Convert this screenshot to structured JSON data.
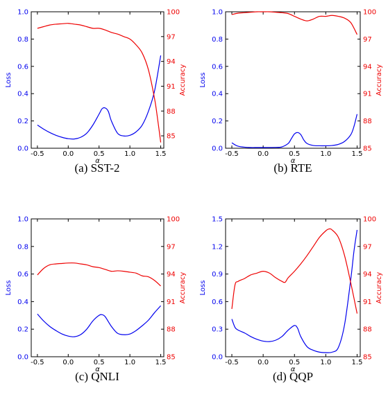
{
  "colors": {
    "loss": "#0000ee",
    "accuracy": "#ee0000",
    "axis": "#000000"
  },
  "chart_data": [
    {
      "type": "line",
      "caption": "(a)  SST-2",
      "xlabel": "α",
      "ylabel_left": "Loss",
      "ylabel_right": "Accuracy",
      "xlim": [
        -0.6,
        1.55
      ],
      "xticks": [
        "-0.5",
        "0.0",
        "0.5",
        "1.0",
        "1.5"
      ],
      "ylim_left": [
        0,
        1.0
      ],
      "yticks_left": [
        "0.0",
        "0.2",
        "0.4",
        "0.6",
        "0.8",
        "1.0"
      ],
      "ylim_right": [
        83.5,
        100
      ],
      "yticks_right": [
        "85",
        "88",
        "91",
        "94",
        "97",
        "100"
      ],
      "series": [
        {
          "axis": "left",
          "x": [
            -0.5,
            -0.4,
            -0.3,
            -0.2,
            -0.1,
            0.0,
            0.1,
            0.2,
            0.3,
            0.4,
            0.5,
            0.55,
            0.6,
            0.65,
            0.7,
            0.8,
            0.9,
            1.0,
            1.1,
            1.2,
            1.3,
            1.4,
            1.5
          ],
          "y": [
            0.17,
            0.14,
            0.115,
            0.095,
            0.08,
            0.07,
            0.068,
            0.08,
            0.11,
            0.17,
            0.25,
            0.29,
            0.295,
            0.27,
            0.2,
            0.11,
            0.09,
            0.095,
            0.12,
            0.17,
            0.27,
            0.42,
            0.68
          ]
        },
        {
          "axis": "right",
          "x": [
            -0.5,
            -0.4,
            -0.3,
            -0.2,
            -0.1,
            0.0,
            0.1,
            0.2,
            0.3,
            0.4,
            0.5,
            0.6,
            0.7,
            0.8,
            0.9,
            1.0,
            1.1,
            1.2,
            1.3,
            1.4,
            1.45,
            1.5
          ],
          "y": [
            98.0,
            98.2,
            98.4,
            98.5,
            98.55,
            98.6,
            98.5,
            98.4,
            98.2,
            98.0,
            98.0,
            97.8,
            97.5,
            97.3,
            97.0,
            96.7,
            96.0,
            95.0,
            93.0,
            89.5,
            87.0,
            84.2
          ]
        }
      ]
    },
    {
      "type": "line",
      "caption": "(b)  RTE",
      "xlabel": "α",
      "ylabel_left": "Loss",
      "ylabel_right": "Accuracy",
      "xlim": [
        -0.6,
        1.55
      ],
      "xticks": [
        "-0.5",
        "0.0",
        "0.5",
        "1.0",
        "1.5"
      ],
      "ylim_left": [
        0,
        1.0
      ],
      "yticks_left": [
        "0.0",
        "0.2",
        "0.4",
        "0.6",
        "0.8",
        "1.0"
      ],
      "ylim_right": [
        85,
        100
      ],
      "yticks_right": [
        "85",
        "88",
        "91",
        "94",
        "97",
        "100"
      ],
      "series": [
        {
          "axis": "left",
          "x": [
            -0.5,
            -0.45,
            -0.4,
            -0.3,
            -0.2,
            -0.1,
            0.0,
            0.2,
            0.3,
            0.4,
            0.45,
            0.5,
            0.55,
            0.6,
            0.65,
            0.7,
            0.8,
            0.9,
            1.0,
            1.1,
            1.2,
            1.3,
            1.4,
            1.45,
            1.5
          ],
          "y": [
            0.04,
            0.025,
            0.015,
            0.008,
            0.005,
            0.005,
            0.005,
            0.006,
            0.01,
            0.035,
            0.07,
            0.105,
            0.115,
            0.1,
            0.06,
            0.035,
            0.02,
            0.018,
            0.018,
            0.02,
            0.028,
            0.05,
            0.1,
            0.16,
            0.25
          ]
        },
        {
          "axis": "right",
          "x": [
            -0.5,
            -0.4,
            -0.3,
            -0.2,
            -0.1,
            0.0,
            0.1,
            0.2,
            0.3,
            0.4,
            0.5,
            0.6,
            0.7,
            0.8,
            0.9,
            1.0,
            1.1,
            1.2,
            1.3,
            1.4,
            1.5
          ],
          "y": [
            99.7,
            99.85,
            99.9,
            99.95,
            100.0,
            100.0,
            100.0,
            99.95,
            99.9,
            99.8,
            99.5,
            99.2,
            99.0,
            99.2,
            99.5,
            99.5,
            99.6,
            99.5,
            99.3,
            98.8,
            97.5
          ]
        }
      ]
    },
    {
      "type": "line",
      "caption": "(c)  QNLI",
      "xlabel": "α",
      "ylabel_left": "Loss",
      "ylabel_right": "Accuracy",
      "xlim": [
        -0.6,
        1.55
      ],
      "xticks": [
        "-0.5",
        "0.0",
        "0.5",
        "1.0",
        "1.5"
      ],
      "ylim_left": [
        0,
        1.0
      ],
      "yticks_left": [
        "0.0",
        "0.2",
        "0.4",
        "0.6",
        "0.8",
        "1.0"
      ],
      "ylim_right": [
        85,
        100
      ],
      "yticks_right": [
        "85",
        "88",
        "91",
        "94",
        "97",
        "100"
      ],
      "series": [
        {
          "axis": "left",
          "x": [
            -0.5,
            -0.4,
            -0.3,
            -0.2,
            -0.1,
            0.0,
            0.1,
            0.2,
            0.3,
            0.4,
            0.5,
            0.55,
            0.6,
            0.7,
            0.8,
            0.9,
            1.0,
            1.1,
            1.2,
            1.3,
            1.4,
            1.5
          ],
          "y": [
            0.31,
            0.26,
            0.22,
            0.19,
            0.165,
            0.15,
            0.145,
            0.16,
            0.2,
            0.26,
            0.3,
            0.305,
            0.29,
            0.22,
            0.17,
            0.16,
            0.165,
            0.19,
            0.225,
            0.265,
            0.32,
            0.37
          ]
        },
        {
          "axis": "right",
          "x": [
            -0.5,
            -0.4,
            -0.3,
            -0.2,
            -0.1,
            0.0,
            0.1,
            0.2,
            0.3,
            0.4,
            0.5,
            0.6,
            0.7,
            0.8,
            0.9,
            1.0,
            1.1,
            1.2,
            1.3,
            1.4,
            1.5
          ],
          "y": [
            93.9,
            94.6,
            95.0,
            95.1,
            95.15,
            95.2,
            95.2,
            95.1,
            95.0,
            94.8,
            94.7,
            94.5,
            94.3,
            94.35,
            94.3,
            94.2,
            94.1,
            93.8,
            93.7,
            93.3,
            92.7
          ]
        }
      ]
    },
    {
      "type": "line",
      "caption": "(d)  QQP",
      "xlabel": "α",
      "ylabel_left": "Loss",
      "ylabel_right": "Accuracy",
      "xlim": [
        -0.6,
        1.55
      ],
      "xticks": [
        "-0.5",
        "0.0",
        "0.5",
        "1.0",
        "1.5"
      ],
      "ylim_left": [
        0,
        1.5
      ],
      "yticks_left": [
        "0.0",
        "0.3",
        "0.6",
        "0.9",
        "1.2",
        "1.5"
      ],
      "ylim_right": [
        85,
        100
      ],
      "yticks_right": [
        "85",
        "88",
        "91",
        "94",
        "97",
        "100"
      ],
      "series": [
        {
          "axis": "left",
          "x": [
            -0.5,
            -0.45,
            -0.4,
            -0.3,
            -0.2,
            -0.1,
            0.0,
            0.1,
            0.2,
            0.3,
            0.4,
            0.5,
            0.55,
            0.6,
            0.7,
            0.8,
            0.9,
            1.0,
            1.1,
            1.2,
            1.3,
            1.4,
            1.45,
            1.5
          ],
          "y": [
            0.41,
            0.32,
            0.29,
            0.26,
            0.22,
            0.19,
            0.17,
            0.165,
            0.18,
            0.22,
            0.29,
            0.34,
            0.31,
            0.22,
            0.11,
            0.07,
            0.05,
            0.045,
            0.05,
            0.1,
            0.35,
            0.85,
            1.15,
            1.38
          ]
        },
        {
          "axis": "right",
          "x": [
            -0.5,
            -0.45,
            -0.4,
            -0.3,
            -0.2,
            -0.1,
            0.0,
            0.1,
            0.2,
            0.3,
            0.35,
            0.4,
            0.5,
            0.6,
            0.7,
            0.8,
            0.9,
            1.0,
            1.05,
            1.1,
            1.2,
            1.3,
            1.4,
            1.5
          ],
          "y": [
            90.2,
            92.8,
            93.2,
            93.5,
            93.9,
            94.1,
            94.3,
            94.1,
            93.6,
            93.2,
            93.1,
            93.6,
            94.3,
            95.1,
            96.0,
            97.0,
            98.0,
            98.7,
            98.9,
            98.8,
            98.0,
            96.0,
            93.0,
            89.7
          ]
        }
      ]
    }
  ]
}
